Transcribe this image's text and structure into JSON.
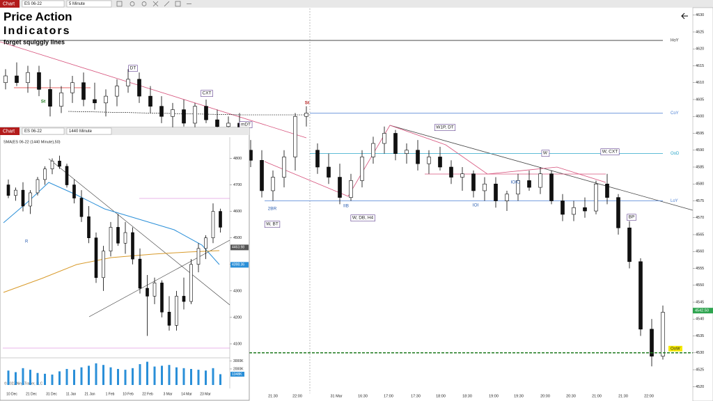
{
  "toolbar": {
    "chart_tab": "Chart",
    "instrument": "ES 06-22",
    "interval": "5 Minute"
  },
  "main_chart": {
    "title_line1": "Price Action",
    "title_line2": "Indicators",
    "subtitle": "forget squiggly lines",
    "ylim": [
      4518,
      4632
    ],
    "yticks": [
      4520,
      4525,
      4530,
      4535,
      4540,
      4545,
      4550,
      4555,
      4560,
      4565,
      4570,
      4575,
      4580,
      4585,
      4590,
      4595,
      4600,
      4605,
      4610,
      4615,
      4620,
      4625,
      4630
    ],
    "time_labels": [
      "21:30",
      "22:00",
      "31 Mar",
      "16:30",
      "17:00",
      "17:30",
      "18:00",
      "18:30",
      "19:00",
      "19:30",
      "20:00",
      "20:30",
      "21:00",
      "21:30",
      "22:00"
    ],
    "levels": [
      {
        "name": "HoY",
        "value": 4622.5,
        "color": "#333333"
      },
      {
        "name": "CoY",
        "value": 4601,
        "color": "#4a7fd4"
      },
      {
        "name": "OoD",
        "value": 4589,
        "color": "#2aa6c8"
      },
      {
        "name": "LoY",
        "value": 4575,
        "color": "#4a7fd4"
      }
    ],
    "open_of_week": {
      "name": "OoW",
      "value": 4530,
      "color": "#1d7a1d"
    },
    "last_price": {
      "value": 4542.5,
      "label": "4542.50"
    },
    "annotations": [
      "DT",
      "CXT",
      "mDT",
      "W1P, DT",
      "W",
      "W, CXT",
      "BP",
      "W, BT",
      "W, DB, H4",
      "2BR",
      "IIB",
      "IOI",
      "IOIC",
      "St",
      "St"
    ],
    "candles": [
      [
        4610,
        4614,
        4608,
        4612
      ],
      [
        4612,
        4616,
        4609,
        4610
      ],
      [
        4610,
        4615,
        4607,
        4613
      ],
      [
        4613,
        4615,
        4606,
        4608
      ],
      [
        4608,
        4611,
        4600,
        4603
      ],
      [
        4603,
        4609,
        4601,
        4607
      ],
      [
        4607,
        4612,
        4604,
        4610
      ],
      [
        4610,
        4613,
        4603,
        4605
      ],
      [
        4605,
        4610,
        4602,
        4604
      ],
      [
        4604,
        4608,
        4600,
        4606
      ],
      [
        4606,
        4611,
        4603,
        4609
      ],
      [
        4609,
        4614,
        4607,
        4611
      ],
      [
        4611,
        4613,
        4604,
        4606
      ],
      [
        4606,
        4609,
        4601,
        4603
      ],
      [
        4603,
        4606,
        4598,
        4600
      ],
      [
        4600,
        4604,
        4596,
        4602
      ],
      [
        4602,
        4605,
        4597,
        4598
      ],
      [
        4598,
        4604,
        4595,
        4603
      ],
      [
        4603,
        4605,
        4598,
        4599
      ],
      [
        4599,
        4602,
        4594,
        4597
      ],
      [
        4597,
        4600,
        4593,
        4598
      ],
      [
        4598,
        4601,
        4594,
        4596
      ],
      [
        4590,
        4593,
        4585,
        4587
      ],
      [
        4587,
        4590,
        4576,
        4578
      ],
      [
        4578,
        4584,
        4575,
        4582
      ],
      [
        4582,
        4590,
        4579,
        4588
      ],
      [
        4588,
        4601,
        4584,
        4600
      ],
      [
        4600,
        4603,
        4597,
        4601
      ],
      [
        4590,
        4592,
        4583,
        4585
      ],
      [
        4585,
        4589,
        4580,
        4582
      ],
      [
        4582,
        4586,
        4574,
        4576
      ],
      [
        4576,
        4583,
        4575,
        4581
      ],
      [
        4581,
        4590,
        4579,
        4588
      ],
      [
        4588,
        4594,
        4586,
        4592
      ],
      [
        4592,
        4597,
        4589,
        4595
      ],
      [
        4595,
        4596,
        4587,
        4589
      ],
      [
        4589,
        4592,
        4586,
        4590
      ],
      [
        4590,
        4593,
        4584,
        4586
      ],
      [
        4586,
        4590,
        4583,
        4588
      ],
      [
        4588,
        4591,
        4584,
        4585
      ],
      [
        4585,
        4587,
        4580,
        4582
      ],
      [
        4582,
        4585,
        4578,
        4583
      ],
      [
        4583,
        4584,
        4576,
        4578
      ],
      [
        4578,
        4582,
        4575,
        4580
      ],
      [
        4580,
        4582,
        4573,
        4575
      ],
      [
        4575,
        4578,
        4572,
        4577
      ],
      [
        4577,
        4583,
        4575,
        4581
      ],
      [
        4581,
        4584,
        4578,
        4579
      ],
      [
        4579,
        4585,
        4577,
        4583
      ],
      [
        4583,
        4584,
        4574,
        4575
      ],
      [
        4575,
        4577,
        4569,
        4571
      ],
      [
        4571,
        4575,
        4569,
        4573
      ],
      [
        4573,
        4576,
        4570,
        4572
      ],
      [
        4572,
        4581,
        4571,
        4580
      ],
      [
        4580,
        4583,
        4574,
        4576
      ],
      [
        4576,
        4577,
        4565,
        4567
      ],
      [
        4567,
        4569,
        4555,
        4557
      ],
      [
        4557,
        4558,
        4535,
        4537
      ],
      [
        4537,
        4540,
        4526,
        4529
      ],
      [
        4529,
        4544,
        4528,
        4542
      ]
    ]
  },
  "inset_chart": {
    "chart_tab": "Chart",
    "instrument": "ES 06-22",
    "interval": "1440 Minute",
    "indicator": "SMA(ES 06-22 (1440 Minute),50)",
    "ylim": [
      4050,
      4880
    ],
    "yticks": [
      4100,
      4200,
      4300,
      4400,
      4500,
      4600,
      4700,
      4800
    ],
    "price_markers": [
      {
        "value": 4463.98,
        "label": "4463.98",
        "color": "#555555"
      },
      {
        "value": 4398.36,
        "label": "4398.36",
        "color": "#2a8fd8"
      }
    ],
    "date_labels": [
      "10 Dec",
      "21 Dec",
      "31 Dec",
      "11 Jan",
      "21 Jan",
      "1 Feb",
      "10 Feb",
      "22 Feb",
      "3 Mar",
      "14 Mar",
      "23 Mar"
    ],
    "label_r": "R",
    "copyright": "© 2022 NinjaTrader, LLC",
    "volume_ylim": [
      0,
      3300
    ],
    "volume_ticks": [
      {
        "value": 3000,
        "label": "3000K"
      },
      {
        "value": 2000,
        "label": "2000K"
      }
    ],
    "volume_last": {
      "value": 1348,
      "label": "1348K"
    },
    "candles": [
      [
        4700,
        4720,
        4650,
        4660
      ],
      [
        4660,
        4690,
        4640,
        4680
      ],
      [
        4680,
        4710,
        4600,
        4620
      ],
      [
        4620,
        4680,
        4590,
        4670
      ],
      [
        4670,
        4730,
        4660,
        4720
      ],
      [
        4720,
        4770,
        4700,
        4760
      ],
      [
        4760,
        4800,
        4740,
        4790
      ],
      [
        4790,
        4810,
        4760,
        4770
      ],
      [
        4770,
        4780,
        4690,
        4700
      ],
      [
        4700,
        4720,
        4630,
        4650
      ],
      [
        4650,
        4680,
        4560,
        4580
      ],
      [
        4580,
        4620,
        4480,
        4500
      ],
      [
        4500,
        4520,
        4330,
        4350
      ],
      [
        4350,
        4470,
        4300,
        4450
      ],
      [
        4450,
        4560,
        4430,
        4540
      ],
      [
        4540,
        4590,
        4470,
        4480
      ],
      [
        4480,
        4560,
        4440,
        4520
      ],
      [
        4520,
        4540,
        4400,
        4420
      ],
      [
        4420,
        4460,
        4290,
        4310
      ],
      [
        4310,
        4360,
        4130,
        4280
      ],
      [
        4280,
        4350,
        4250,
        4330
      ],
      [
        4330,
        4340,
        4200,
        4220
      ],
      [
        4220,
        4280,
        4150,
        4170
      ],
      [
        4170,
        4300,
        4150,
        4280
      ],
      [
        4280,
        4350,
        4230,
        4260
      ],
      [
        4260,
        4420,
        4250,
        4400
      ],
      [
        4400,
        4480,
        4370,
        4460
      ],
      [
        4460,
        4510,
        4420,
        4500
      ],
      [
        4500,
        4630,
        4480,
        4600
      ],
      [
        4600,
        4610,
        4520,
        4540
      ]
    ],
    "volumes": [
      1800,
      1600,
      2100,
      1900,
      1500,
      1400,
      1300,
      1700,
      2000,
      1900,
      2200,
      2400,
      2700,
      2500,
      2200,
      2000,
      1900,
      2100,
      2600,
      2900,
      2300,
      2400,
      2500,
      2200,
      2100,
      2000,
      1900,
      1800,
      2100,
      1348
    ]
  }
}
